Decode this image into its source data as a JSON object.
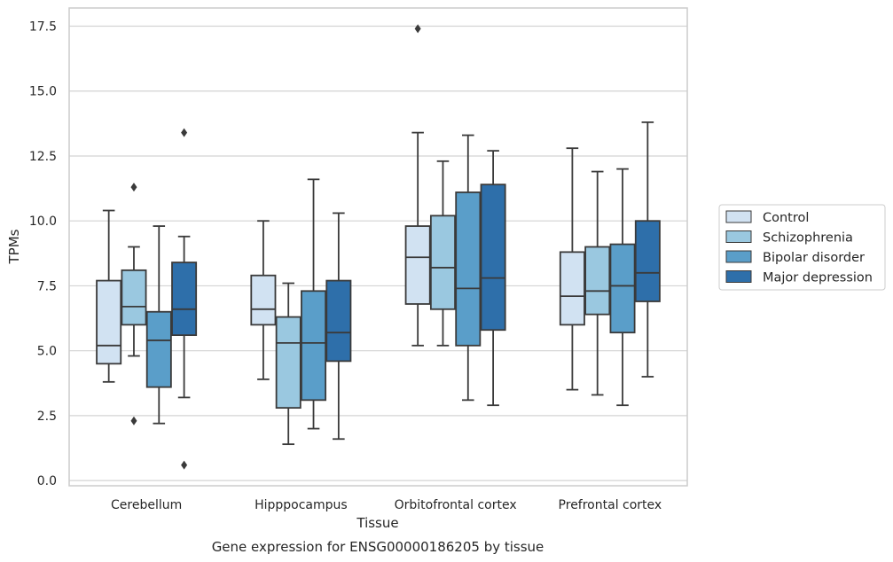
{
  "chart_data": {
    "type": "box",
    "title": "",
    "caption": "Gene expression for ENSG00000186205 by tissue",
    "xlabel": "Tissue",
    "ylabel": "TPMs",
    "ylim": [
      -0.2,
      18.2
    ],
    "yticks": [
      "0.0",
      "2.5",
      "5.0",
      "7.5",
      "10.0",
      "12.5",
      "15.0",
      "17.5"
    ],
    "grid": true,
    "legend_position": "right",
    "categories": [
      "Cerebellum",
      "Hipppocampus",
      "Orbitofrontal cortex",
      "Prefrontal cortex"
    ],
    "series": [
      {
        "name": "Control",
        "color": "#d1e2f2",
        "boxes": [
          {
            "whislo": 3.8,
            "q1": 4.5,
            "med": 5.2,
            "q3": 7.7,
            "whishi": 10.4,
            "fliers": []
          },
          {
            "whislo": 3.9,
            "q1": 6.0,
            "med": 6.6,
            "q3": 7.9,
            "whishi": 10.0,
            "fliers": []
          },
          {
            "whislo": 5.2,
            "q1": 6.8,
            "med": 8.6,
            "q3": 9.8,
            "whishi": 13.4,
            "fliers": [
              17.4
            ]
          },
          {
            "whislo": 3.5,
            "q1": 6.0,
            "med": 7.1,
            "q3": 8.8,
            "whishi": 12.8,
            "fliers": []
          }
        ]
      },
      {
        "name": "Schizophrenia",
        "color": "#9ac8e0",
        "boxes": [
          {
            "whislo": 4.8,
            "q1": 6.0,
            "med": 6.7,
            "q3": 8.1,
            "whishi": 9.0,
            "fliers": [
              11.3,
              2.3
            ]
          },
          {
            "whislo": 1.4,
            "q1": 2.8,
            "med": 5.3,
            "q3": 6.3,
            "whishi": 7.6,
            "fliers": []
          },
          {
            "whislo": 5.2,
            "q1": 6.6,
            "med": 8.2,
            "q3": 10.2,
            "whishi": 12.3,
            "fliers": []
          },
          {
            "whislo": 3.3,
            "q1": 6.4,
            "med": 7.3,
            "q3": 9.0,
            "whishi": 11.9,
            "fliers": []
          }
        ]
      },
      {
        "name": "Bipolar disorder",
        "color": "#5a9ec9",
        "boxes": [
          {
            "whislo": 2.2,
            "q1": 3.6,
            "med": 5.4,
            "q3": 6.5,
            "whishi": 9.8,
            "fliers": []
          },
          {
            "whislo": 2.0,
            "q1": 3.1,
            "med": 5.3,
            "q3": 7.3,
            "whishi": 11.6,
            "fliers": []
          },
          {
            "whislo": 3.1,
            "q1": 5.2,
            "med": 7.4,
            "q3": 11.1,
            "whishi": 13.3,
            "fliers": []
          },
          {
            "whislo": 2.9,
            "q1": 5.7,
            "med": 7.5,
            "q3": 9.1,
            "whishi": 12.0,
            "fliers": []
          }
        ]
      },
      {
        "name": "Major depression",
        "color": "#2e6faa",
        "boxes": [
          {
            "whislo": 3.2,
            "q1": 5.6,
            "med": 6.6,
            "q3": 8.4,
            "whishi": 9.4,
            "fliers": [
              13.4,
              0.6
            ]
          },
          {
            "whislo": 1.6,
            "q1": 4.6,
            "med": 5.7,
            "q3": 7.7,
            "whishi": 10.3,
            "fliers": []
          },
          {
            "whislo": 2.9,
            "q1": 5.8,
            "med": 7.8,
            "q3": 11.4,
            "whishi": 12.7,
            "fliers": []
          },
          {
            "whislo": 4.0,
            "q1": 6.9,
            "med": 8.0,
            "q3": 10.0,
            "whishi": 13.8,
            "fliers": []
          }
        ]
      }
    ]
  }
}
